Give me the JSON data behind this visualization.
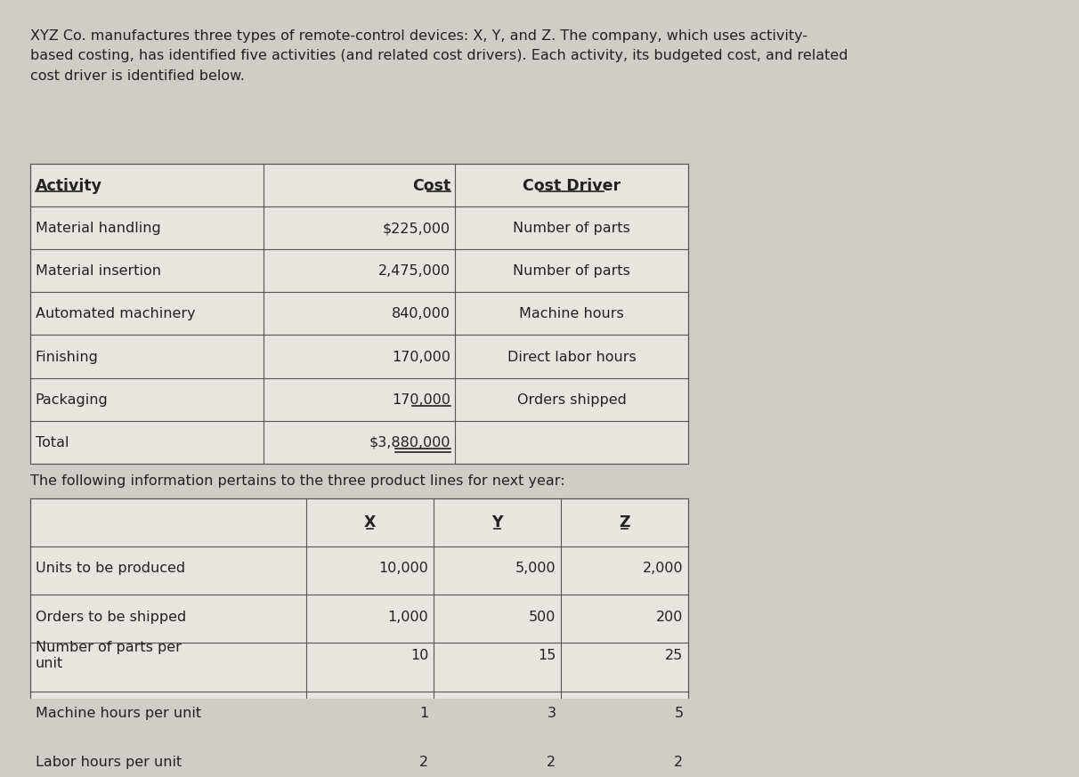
{
  "intro_text": "XYZ Co. manufactures three types of remote-control devices: X, Y, and Z. The company, which uses activity-\nbased costing, has identified five activities (and related cost drivers). Each activity, its budgeted cost, and related\ncost driver is identified below.",
  "table1_headers": [
    "Activity",
    "Cost",
    "Cost Driver"
  ],
  "table1_rows": [
    [
      "Material handling",
      "$225,000",
      "Number of parts"
    ],
    [
      "Material insertion",
      "2,475,000",
      "Number of parts"
    ],
    [
      "Automated machinery",
      "840,000",
      "Machine hours"
    ],
    [
      "Finishing",
      "170,000",
      "Direct labor hours"
    ],
    [
      "Packaging",
      "170,000",
      "Orders shipped"
    ],
    [
      "Total",
      "$3,880,000",
      ""
    ]
  ],
  "mid_text": "The following information pertains to the three product lines for next year:",
  "table2_headers": [
    "",
    "X",
    "Y",
    "Z"
  ],
  "table2_rows": [
    [
      "Units to be produced",
      "10,000",
      "5,000",
      "2,000"
    ],
    [
      "Orders to be shipped",
      "1,000",
      "500",
      "200"
    ],
    [
      "Number of parts per\nunit",
      "10",
      "15",
      "25"
    ],
    [
      "Machine hours per unit",
      "1",
      "3",
      "5"
    ],
    [
      "Labor hours per unit",
      "2",
      "2",
      "2"
    ]
  ],
  "bg_color": "#d0ccc8",
  "table_bg": "#e8e4e0",
  "line_color": "#555555",
  "text_color": "#222222",
  "font_size": 11.5,
  "header_font_size": 12.5
}
